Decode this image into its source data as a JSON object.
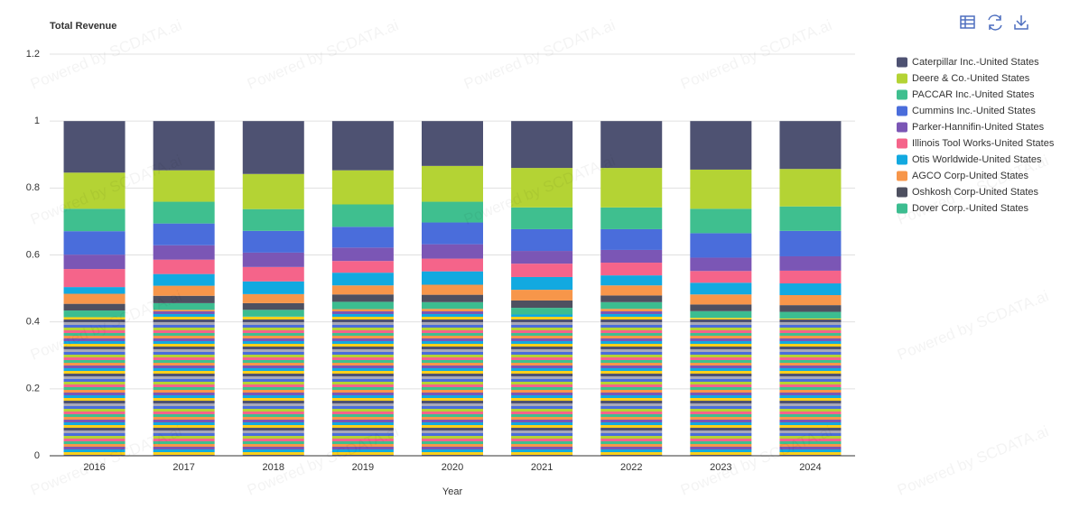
{
  "chart_data": {
    "type": "bar",
    "stacked": true,
    "title": "Total Revenue",
    "x_label": "Year",
    "watermark": "Powered by SCDATA.ai",
    "categories": [
      "2016",
      "2017",
      "2018",
      "2019",
      "2020",
      "2021",
      "2022",
      "2023",
      "2024"
    ],
    "ylim": [
      0,
      1.2
    ],
    "yticks": [
      0,
      0.2,
      0.4,
      0.6,
      0.8,
      1,
      1.2
    ],
    "grid": true,
    "legend": "right",
    "series": [
      {
        "name": "Caterpillar Inc.-United States",
        "color": "#4e5272",
        "values": [
          0.154,
          0.147,
          0.158,
          0.147,
          0.134,
          0.14,
          0.14,
          0.145,
          0.143
        ]
      },
      {
        "name": "Deere & Co.-United States",
        "color": "#b4d334",
        "values": [
          0.108,
          0.094,
          0.105,
          0.102,
          0.107,
          0.118,
          0.118,
          0.117,
          0.112
        ]
      },
      {
        "name": "PACCAR Inc.-United States",
        "color": "#3fbf8f",
        "values": [
          0.067,
          0.065,
          0.065,
          0.067,
          0.062,
          0.065,
          0.065,
          0.073,
          0.073
        ]
      },
      {
        "name": "Cummins Inc.-United States",
        "color": "#4a6ddb",
        "values": [
          0.07,
          0.065,
          0.065,
          0.062,
          0.065,
          0.065,
          0.062,
          0.073,
          0.076
        ]
      },
      {
        "name": "Parker-Hannifin-United States",
        "color": "#7b56b5",
        "values": [
          0.043,
          0.043,
          0.043,
          0.04,
          0.043,
          0.038,
          0.038,
          0.04,
          0.043
        ]
      },
      {
        "name": "Illinois Tool Works-United States",
        "color": "#f5648a",
        "values": [
          0.054,
          0.043,
          0.043,
          0.035,
          0.038,
          0.04,
          0.038,
          0.035,
          0.038
        ]
      },
      {
        "name": "Otis Worldwide-United States",
        "color": "#12a9e0",
        "values": [
          0.02,
          0.035,
          0.038,
          0.038,
          0.04,
          0.038,
          0.03,
          0.035,
          0.035
        ]
      },
      {
        "name": "AGCO Corp-United States",
        "color": "#f7964a",
        "values": [
          0.03,
          0.03,
          0.027,
          0.027,
          0.03,
          0.032,
          0.03,
          0.03,
          0.03
        ]
      },
      {
        "name": "Oshkosh Corp-United States",
        "color": "#4e5060",
        "values": [
          0.02,
          0.022,
          0.02,
          0.022,
          0.022,
          0.022,
          0.02,
          0.02,
          0.02
        ]
      },
      {
        "name": "Dover Corp.-United States",
        "color": "#3cbd90",
        "values": [
          0.02,
          0.02,
          0.02,
          0.022,
          0.02,
          0.02,
          0.02,
          0.02,
          0.02
        ]
      },
      {
        "color": "url(#stripes)",
        "values": [
          0.414,
          0.436,
          0.416,
          0.438,
          0.439,
          0.422,
          0.439,
          0.412,
          0.41
        ]
      }
    ]
  }
}
